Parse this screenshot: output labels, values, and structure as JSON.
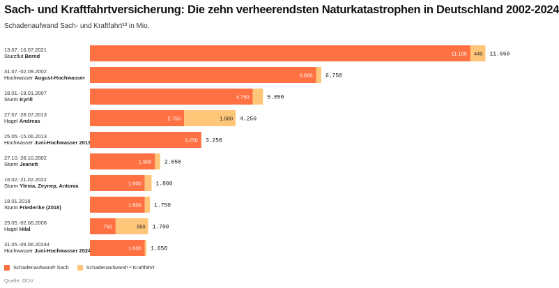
{
  "title": "Sach- und Kraftfahrtversicherung: Die zehn verheerendsten Naturkatastrophen in Deutschland 2002-2024",
  "subtitle": "Schadenaufwand Sach- und Kraftfahrt¹³ in Mio.",
  "source": "Quelle: GDV",
  "colors": {
    "sach": "#ff7043",
    "kraftfahrt": "#ffc67a"
  },
  "chart_data": {
    "type": "bar",
    "orientation": "horizontal",
    "stacked": true,
    "title": "Sach- und Kraftfahrtversicherung: Die zehn verheerendsten Naturkatastrophen in Deutschland 2002-2024",
    "subtitle": "Schadenaufwand Sach- und Kraftfahrt¹³ in Mio.",
    "xlabel": "",
    "ylabel": "",
    "xlim": [
      0,
      11550
    ],
    "grid": false,
    "legend_position": "bottom-left",
    "categories": [
      {
        "date": "13.07.-16.07.2021",
        "kind": "Sturzflut",
        "event": "Bernd"
      },
      {
        "date": "31.07.-02.09.2002",
        "kind": "Hochwasser",
        "event": "August-Hochwasser"
      },
      {
        "date": "18.01.-19.01.2007",
        "kind": "Sturm",
        "event": "Kyrill"
      },
      {
        "date": "27.07.-28.07.2013",
        "kind": "Hagel",
        "event": "Andreas"
      },
      {
        "date": "25.05.-15.06.2013",
        "kind": "Hochwasser",
        "event": "Juni-Hochwasser 2013"
      },
      {
        "date": "27.10.-28.10.2002",
        "kind": "Sturm",
        "event": "Jeanett"
      },
      {
        "date": "16.02.-21.02.2022",
        "kind": "Sturm",
        "event": "Ylenia, Zeynep, Antonia"
      },
      {
        "date": "18.01.2018",
        "kind": "Sturm",
        "event": "Friederike (2018)"
      },
      {
        "date": "29.05.-02.06.2008",
        "kind": "Hagel",
        "event": "Hilal"
      },
      {
        "date": "31.05.-09.06.20244",
        "kind": "Hochwasser",
        "event": "Juni-Hochwasser 2024"
      }
    ],
    "series": [
      {
        "name": "Schadenaufwand² Sach",
        "values": [
          11100,
          6600,
          4750,
          2750,
          3250,
          1900,
          1600,
          1600,
          750,
          1600
        ],
        "labels": [
          "11.100",
          "6.600",
          "4.750",
          "2.750",
          "3.250",
          "1.900",
          "1.600",
          "1.600",
          "750",
          "1.600"
        ]
      },
      {
        "name": "Schadenaufwand¹ ² Kraftfahrt",
        "values": [
          440,
          150,
          300,
          1500,
          0,
          150,
          200,
          150,
          950,
          50
        ],
        "labels": [
          "440",
          "",
          "",
          "1.500",
          "",
          "",
          "",
          "",
          "950",
          ""
        ]
      }
    ],
    "totals": [
      11550,
      6750,
      5050,
      4250,
      3250,
      2050,
      1800,
      1750,
      1700,
      1650
    ],
    "total_labels": [
      "11.550",
      "6.750",
      "5.050",
      "4.250",
      "3.250",
      "2.050",
      "1.800",
      "1.750",
      "1.700",
      "1.650"
    ]
  }
}
